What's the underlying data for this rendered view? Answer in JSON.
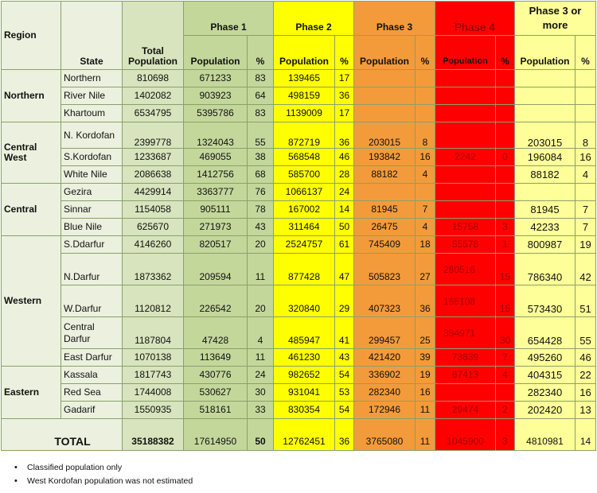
{
  "headers": {
    "region": "Region",
    "state": "State",
    "total_population": "Total Population",
    "phase1": "Phase 1",
    "phase2": "Phase 2",
    "phase3": "Phase 3",
    "phase4": "Phase 4",
    "phase3_or_more": "Phase 3 or more",
    "population": "Population",
    "pct": "%"
  },
  "regions": [
    "Northern",
    "Central West",
    "Central",
    "Western",
    "Eastern"
  ],
  "rows": [
    {
      "state": "Northern",
      "total": "810698",
      "p1_pop": "671233",
      "p1_pct": "83",
      "p2_pop": "139465",
      "p2_pct": "17",
      "p3_pop": "",
      "p3_pct": "",
      "p4_pop": "",
      "p4_pct": "",
      "p3m_pop": "",
      "p3m_pct": ""
    },
    {
      "state": "River Nile",
      "total": "1402082",
      "p1_pop": "903923",
      "p1_pct": "64",
      "p2_pop": "498159",
      "p2_pct": "36",
      "p3_pop": "",
      "p3_pct": "",
      "p4_pop": "",
      "p4_pct": "",
      "p3m_pop": "",
      "p3m_pct": ""
    },
    {
      "state": "Khartoum",
      "total": "6534795",
      "p1_pop": "5395786",
      "p1_pct": "83",
      "p2_pop": "1139009",
      "p2_pct": "17",
      "p3_pop": "",
      "p3_pct": "",
      "p4_pop": "",
      "p4_pct": "",
      "p3m_pop": "",
      "p3m_pct": ""
    },
    {
      "state": "N. Kordofan",
      "total": "2399778",
      "p1_pop": "1324043",
      "p1_pct": "55",
      "p2_pop": "872719",
      "p2_pct": "36",
      "p3_pop": "203015",
      "p3_pct": "8",
      "p4_pop": "",
      "p4_pct": "",
      "p3m_pop": "203015",
      "p3m_pct": "8"
    },
    {
      "state": "S.Kordofan",
      "total": "1233687",
      "p1_pop": "469055",
      "p1_pct": "38",
      "p2_pop": "568548",
      "p2_pct": "46",
      "p3_pop": "193842",
      "p3_pct": "16",
      "p4_pop": "2242",
      "p4_pct": "0",
      "p3m_pop": "196084",
      "p3m_pct": "16"
    },
    {
      "state": "White Nile",
      "total": "2086638",
      "p1_pop": "1412756",
      "p1_pct": "68",
      "p2_pop": "585700",
      "p2_pct": "28",
      "p3_pop": "88182",
      "p3_pct": "4",
      "p4_pop": "",
      "p4_pct": "",
      "p3m_pop": "88182",
      "p3m_pct": "4"
    },
    {
      "state": "Gezira",
      "total": "4429914",
      "p1_pop": "3363777",
      "p1_pct": "76",
      "p2_pop": "1066137",
      "p2_pct": "24",
      "p3_pop": "",
      "p3_pct": "",
      "p4_pop": "",
      "p4_pct": "",
      "p3m_pop": "",
      "p3m_pct": ""
    },
    {
      "state": "Sinnar",
      "total": "1154058",
      "p1_pop": "905111",
      "p1_pct": "78",
      "p2_pop": "167002",
      "p2_pct": "14",
      "p3_pop": "81945",
      "p3_pct": "7",
      "p4_pop": "",
      "p4_pct": "",
      "p3m_pop": "81945",
      "p3m_pct": "7"
    },
    {
      "state": "Blue Nile",
      "total": "625670",
      "p1_pop": "271973",
      "p1_pct": "43",
      "p2_pop": "311464",
      "p2_pct": "50",
      "p3_pop": "26475",
      "p3_pct": "4",
      "p4_pop": "15758",
      "p4_pct": "3",
      "p3m_pop": "42233",
      "p3m_pct": "7"
    },
    {
      "state": "S.Ddarfur",
      "total": "4146260",
      "p1_pop": "820517",
      "p1_pct": "20",
      "p2_pop": "2524757",
      "p2_pct": "61",
      "p3_pop": "745409",
      "p3_pct": "18",
      "p4_pop": "55578",
      "p4_pct": "1",
      "p3m_pop": "800987",
      "p3m_pct": "19"
    },
    {
      "state": "N.Darfur",
      "total": "1873362",
      "p1_pop": "209594",
      "p1_pct": "11",
      "p2_pop": "877428",
      "p2_pct": "47",
      "p3_pop": "505823",
      "p3_pct": "27",
      "p4_pop": "280516",
      "p4_pct": "15",
      "p3m_pop": "786340",
      "p3m_pct": "42"
    },
    {
      "state": "W.Darfur",
      "total": "1120812",
      "p1_pop": "226542",
      "p1_pct": "20",
      "p2_pop": "320840",
      "p2_pct": "29",
      "p3_pop": "407323",
      "p3_pct": "36",
      "p4_pop": "166108",
      "p4_pct": "15",
      "p3m_pop": "573430",
      "p3m_pct": "51"
    },
    {
      "state": "Central Darfur",
      "total": "1187804",
      "p1_pop": "47428",
      "p1_pct": "4",
      "p2_pop": "485947",
      "p2_pct": "41",
      "p3_pop": "299457",
      "p3_pct": "25",
      "p4_pop": "354971",
      "p4_pct": "30",
      "p3m_pop": "654428",
      "p3m_pct": "55"
    },
    {
      "state": "East Darfur",
      "total": "1070138",
      "p1_pop": "113649",
      "p1_pct": "11",
      "p2_pop": "461230",
      "p2_pct": "43",
      "p3_pop": "421420",
      "p3_pct": "39",
      "p4_pop": "73839",
      "p4_pct": "7",
      "p3m_pop": "495260",
      "p3m_pct": "46"
    },
    {
      "state": "Kassala",
      "total": "1817743",
      "p1_pop": "430776",
      "p1_pct": "24",
      "p2_pop": "982652",
      "p2_pct": "54",
      "p3_pop": "336902",
      "p3_pct": "19",
      "p4_pop": "67413",
      "p4_pct": "4",
      "p3m_pop": "404315",
      "p3m_pct": "22"
    },
    {
      "state": "Red Sea",
      "total": "1744008",
      "p1_pop": "530627",
      "p1_pct": "30",
      "p2_pop": "931041",
      "p2_pct": "53",
      "p3_pop": "282340",
      "p3_pct": "16",
      "p4_pop": "",
      "p4_pct": "",
      "p3m_pop": "282340",
      "p3m_pct": "16"
    },
    {
      "state": "Gadarif",
      "total": "1550935",
      "p1_pop": "518161",
      "p1_pct": "33",
      "p2_pop": "830354",
      "p2_pct": "54",
      "p3_pop": "172946",
      "p3_pct": "11",
      "p4_pop": "29474",
      "p4_pct": "2",
      "p3m_pop": "202420",
      "p3m_pct": "13"
    }
  ],
  "total": {
    "label": "TOTAL",
    "total": "35188382",
    "p1_pop": "17614950",
    "p1_pct": "50",
    "p2_pop": "12762451",
    "p2_pct": "36",
    "p3_pop": "3765080",
    "p3_pct": "11",
    "p4_pop": "1045900",
    "p4_pct": "3",
    "p3m_pop": "4810981",
    "p3m_pct": "14"
  },
  "notes": [
    "Classified population only",
    "West  Kordofan population was not estimated"
  ],
  "colors": {
    "phase1": "#c4d79b",
    "phase2": "#ffff00",
    "phase3": "#f39b3a",
    "phase4": "#ff0000",
    "phase3_or_more": "#ffff99",
    "region": "#ebf1de"
  }
}
